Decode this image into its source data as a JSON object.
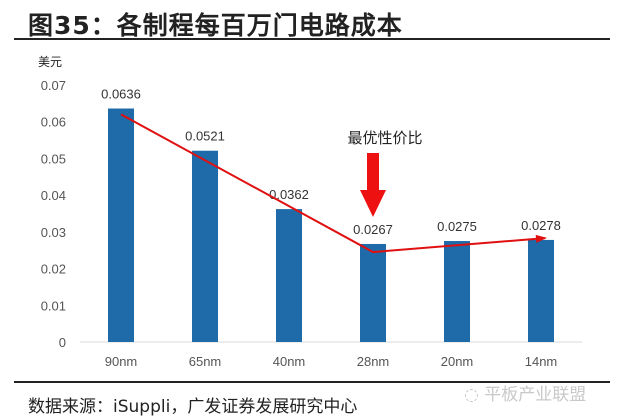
{
  "title": "图35：各制程每百万门电路成本",
  "source": "数据来源：iSuppli，广发证券发展研究中心",
  "watermark": "平板产业联盟",
  "chart_data": {
    "type": "bar",
    "title": "图35：各制程每百万门电路成本",
    "ylabel": "美元",
    "xlabel": "",
    "categories": [
      "90nm",
      "65nm",
      "40nm",
      "28nm",
      "20nm",
      "14nm"
    ],
    "values": [
      0.0636,
      0.0521,
      0.0362,
      0.0267,
      0.0275,
      0.0278
    ],
    "data_labels": [
      "0.0636",
      "0.0521",
      "0.0362",
      "0.0267",
      "0.0275",
      "0.0278"
    ],
    "ylim": [
      0,
      0.07
    ],
    "yticks": [
      "0",
      "0.01",
      "0.02",
      "0.03",
      "0.04",
      "0.05",
      "0.06",
      "0.07"
    ],
    "trend_line": {
      "points": [
        {
          "x": "90nm",
          "y": 0.062
        },
        {
          "x": "28nm",
          "y": 0.0245
        },
        {
          "x": "14nm",
          "y": 0.0283
        }
      ]
    },
    "annotation": "最优性价比",
    "annotation_target": "28nm",
    "grid": false,
    "colors": {
      "bar": "#1f6aa8",
      "trend": "#e01010",
      "annotation_arrow": "#ee1111"
    }
  }
}
